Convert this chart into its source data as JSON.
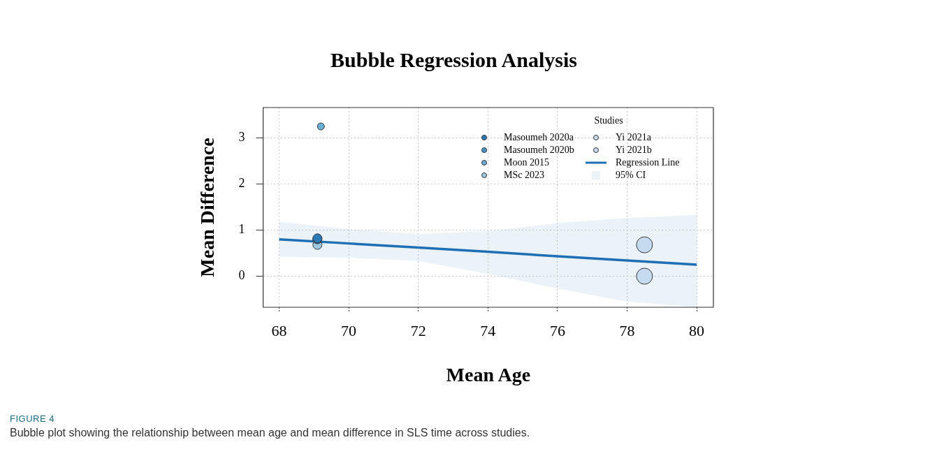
{
  "chart_data": {
    "type": "bubble",
    "title": "Bubble Regression Analysis",
    "xlabel": "Mean Age",
    "ylabel": "Mean Difference",
    "legend_title": "Studies",
    "xlim": [
      67.54,
      80.48
    ],
    "xticks": [
      68,
      70,
      72,
      74,
      76,
      78,
      80
    ],
    "ylim": [
      -0.675,
      3.66
    ],
    "yticks": [
      0,
      1,
      2,
      3
    ],
    "grid": true,
    "legend": "top right",
    "series": [
      {
        "name": "Masoumeh 2020a",
        "color": "#2b7bba",
        "x": [
          69.1
        ],
        "values": [
          0.82
        ],
        "sizes": [
          0.32
        ]
      },
      {
        "name": "Masoumeh 2020b",
        "color": "#4a94c8",
        "x": [
          69.1
        ],
        "values": [
          0.8
        ],
        "sizes": [
          0.32
        ]
      },
      {
        "name": "Moon 2015",
        "color": "#6baed6",
        "x": [
          69.2
        ],
        "values": [
          3.25
        ],
        "sizes": [
          0.19
        ]
      },
      {
        "name": "MSc 2023",
        "color": "#9ecae1",
        "x": [
          69.1
        ],
        "values": [
          0.68
        ],
        "sizes": [
          0.32
        ]
      },
      {
        "name": "Yi 2021a",
        "color": "#c6dbef",
        "x": [
          78.5
        ],
        "values": [
          0.68
        ],
        "sizes": [
          1
        ]
      },
      {
        "name": "Yi 2021b",
        "color": "#c6dbef",
        "x": [
          78.5
        ],
        "values": [
          0.0
        ],
        "sizes": [
          1
        ]
      },
      {
        "name": "Regression Line",
        "type": "line",
        "color": "#1f6fb4",
        "x": [
          68,
          70,
          72,
          74,
          76,
          78,
          80
        ],
        "values": [
          0.8,
          0.71,
          0.62,
          0.53,
          0.43,
          0.34,
          0.25
        ],
        "lower": [
          0.42,
          0.4,
          0.33,
          0.05,
          -0.27,
          -0.55,
          -0.67
        ],
        "upper": [
          1.18,
          1.02,
          0.91,
          0.98,
          1.15,
          1.26,
          1.33
        ]
      }
    ],
    "annotations": [
      "95% CI",
      "FIGURE 4",
      "Bubble plot showing the relationship between mean age and mean difference in SLS time across studies."
    ]
  }
}
